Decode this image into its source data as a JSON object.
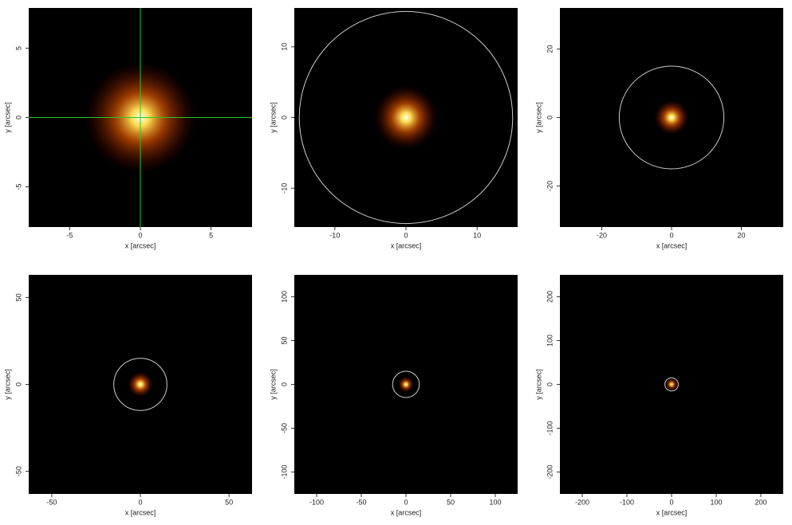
{
  "chart_data": [
    {
      "type": "image",
      "xlabel": "x [arcsec]",
      "ylabel": "y [arcsec]",
      "xlim": [
        -7.9,
        7.9
      ],
      "ylim": [
        -7.9,
        7.9
      ],
      "xticks": [
        -5,
        0,
        5
      ],
      "yticks": [
        -5,
        0,
        5
      ],
      "crosshair": {
        "x": 0,
        "y": 0,
        "color": "#22cc22"
      }
    },
    {
      "type": "image",
      "xlabel": "x [arcsec]",
      "ylabel": "y [arcsec]",
      "xlim": [
        -15.7,
        15.7
      ],
      "ylim": [
        -15.5,
        15.5
      ],
      "xticks": [
        -10,
        0,
        10
      ],
      "yticks": [
        -10,
        0,
        10
      ],
      "circle": {
        "x": 0,
        "y": 0,
        "r": 15,
        "color": "#cccccc"
      }
    },
    {
      "type": "image",
      "xlabel": "x [arcsec]",
      "ylabel": "y [arcsec]",
      "xlim": [
        -32,
        32
      ],
      "ylim": [
        -32,
        32
      ],
      "xticks": [
        -20,
        0,
        20
      ],
      "yticks": [
        -20,
        0,
        20
      ],
      "circle": {
        "x": 0,
        "y": 0,
        "r": 15,
        "color": "#cccccc"
      }
    },
    {
      "type": "image",
      "xlabel": "x [arcsec]",
      "ylabel": "y [arcsec]",
      "xlim": [
        -63,
        63
      ],
      "ylim": [
        -63,
        63
      ],
      "xticks": [
        -50,
        0,
        50
      ],
      "yticks": [
        -50,
        0,
        50
      ],
      "circle": {
        "x": 0,
        "y": 0,
        "r": 15,
        "color": "#cccccc"
      }
    },
    {
      "type": "image",
      "xlabel": "x [arcsec]",
      "ylabel": "y [arcsec]",
      "xlim": [
        -125,
        125
      ],
      "ylim": [
        -125,
        125
      ],
      "xticks": [
        -100,
        -50,
        0,
        50,
        100
      ],
      "yticks": [
        -100,
        -50,
        0,
        50,
        100
      ],
      "circle": {
        "x": 0,
        "y": 0,
        "r": 15,
        "color": "#cccccc"
      }
    },
    {
      "type": "image",
      "xlabel": "x [arcsec]",
      "ylabel": "y [arcsec]",
      "xlim": [
        -250,
        250
      ],
      "ylim": [
        -250,
        250
      ],
      "xticks": [
        -200,
        -100,
        0,
        100,
        200
      ],
      "yticks": [
        -200,
        -100,
        0,
        100,
        200
      ],
      "circle": {
        "x": 0,
        "y": 0,
        "r": 15,
        "color": "#cccccc"
      }
    }
  ]
}
